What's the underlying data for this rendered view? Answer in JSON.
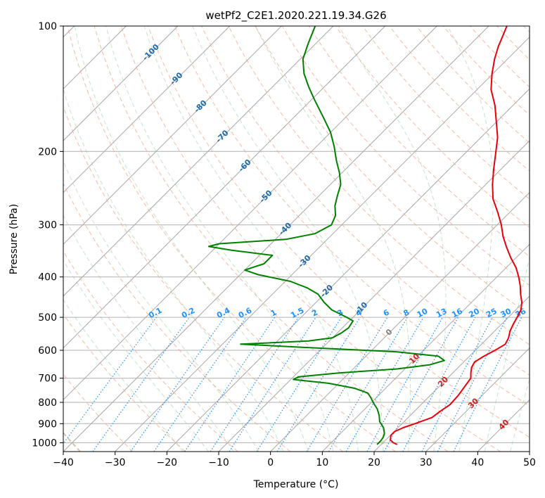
{
  "chart_data": {
    "type": "line",
    "title": "wetPf2_C2E1.2020.221.19.34.G26",
    "xlabel": "Temperature (°C)",
    "ylabel": "Pressure (hPa)",
    "xlim": [
      -40,
      50
    ],
    "ylim": [
      1050,
      100
    ],
    "y_scale": "log",
    "skew": true,
    "grid": true,
    "x_ticks": [
      -40,
      -30,
      -20,
      -10,
      0,
      10,
      20,
      30,
      40,
      50
    ],
    "x_tick_labels": [
      "−40",
      "−30",
      "−20",
      "−10",
      "0",
      "10",
      "20",
      "30",
      "40",
      "50"
    ],
    "y_ticks": [
      100,
      200,
      300,
      400,
      500,
      600,
      700,
      800,
      900,
      1000
    ],
    "y_tick_labels": [
      "100",
      "200",
      "300",
      "400",
      "500",
      "600",
      "700",
      "800",
      "900",
      "1000"
    ],
    "dry_adiabat_labels": [
      "-100",
      "-90",
      "-80",
      "-70",
      "-60",
      "-50",
      "-40",
      "-30",
      "-20",
      "-10",
      "0",
      "10",
      "20",
      "30",
      "40"
    ],
    "mixing_ratio_labels": [
      "0.1",
      "0.2",
      "0.4",
      "0.6",
      "1",
      "1.5",
      "2",
      "3",
      "4",
      "6",
      "8",
      "10",
      "13",
      "16",
      "20",
      "25",
      "30",
      "36"
    ],
    "mixing_ratio_values": [
      0.1,
      0.2,
      0.4,
      0.6,
      1,
      1.5,
      2,
      3,
      4,
      6,
      8,
      10,
      13,
      16,
      20,
      25,
      30,
      36
    ],
    "series": [
      {
        "color": "#e8000b",
        "points": [
          [
            1010,
            23.1
          ],
          [
            1000,
            22.0
          ],
          [
            985,
            20.9
          ],
          [
            960,
            20.1
          ],
          [
            940,
            20.1
          ],
          [
            920,
            21.0
          ],
          [
            900,
            22.5
          ],
          [
            870,
            24.6
          ],
          [
            840,
            25.0
          ],
          [
            810,
            25.6
          ],
          [
            770,
            25.4
          ],
          [
            730,
            24.9
          ],
          [
            700,
            24.5
          ],
          [
            680,
            23.5
          ],
          [
            660,
            22.6
          ],
          [
            640,
            22.1
          ],
          [
            620,
            22.8
          ],
          [
            600,
            23.8
          ],
          [
            580,
            24.6
          ],
          [
            560,
            24.0
          ],
          [
            540,
            23.0
          ],
          [
            520,
            22.3
          ],
          [
            500,
            21.7
          ],
          [
            480,
            21.0
          ],
          [
            460,
            19.7
          ],
          [
            440,
            17.9
          ],
          [
            420,
            16.2
          ],
          [
            400,
            14.2
          ],
          [
            380,
            11.9
          ],
          [
            360,
            9.0
          ],
          [
            340,
            6.2
          ],
          [
            320,
            3.4
          ],
          [
            300,
            0.8
          ],
          [
            280,
            -2.3
          ],
          [
            260,
            -5.8
          ],
          [
            240,
            -8.7
          ],
          [
            220,
            -11.5
          ],
          [
            200,
            -14.4
          ],
          [
            185,
            -16.8
          ],
          [
            170,
            -20.0
          ],
          [
            155,
            -23.5
          ],
          [
            142,
            -27.3
          ],
          [
            130,
            -30.2
          ],
          [
            120,
            -32.5
          ],
          [
            112,
            -34.2
          ],
          [
            105,
            -35.5
          ],
          [
            100,
            -36.5
          ]
        ]
      },
      {
        "color": "#008000",
        "points": [
          [
            1010,
            19.2
          ],
          [
            990,
            19.2
          ],
          [
            970,
            19.0
          ],
          [
            950,
            18.5
          ],
          [
            920,
            17.2
          ],
          [
            890,
            15.3
          ],
          [
            860,
            14.0
          ],
          [
            830,
            12.4
          ],
          [
            800,
            10.3
          ],
          [
            780,
            9.0
          ],
          [
            760,
            7.5
          ],
          [
            740,
            4.0
          ],
          [
            720,
            -2.0
          ],
          [
            705,
            -9.5
          ],
          [
            695,
            -9.0
          ],
          [
            680,
            -2.0
          ],
          [
            665,
            8.5
          ],
          [
            650,
            14.0
          ],
          [
            635,
            16.0
          ],
          [
            620,
            14.0
          ],
          [
            605,
            5.0
          ],
          [
            590,
            -14.0
          ],
          [
            580,
            -26.5
          ],
          [
            570,
            -14.0
          ],
          [
            560,
            -10.0
          ],
          [
            545,
            -9.2
          ],
          [
            530,
            -8.8
          ],
          [
            510,
            -9.3
          ],
          [
            500,
            -11.2
          ],
          [
            480,
            -15.5
          ],
          [
            460,
            -18.5
          ],
          [
            440,
            -21.2
          ],
          [
            425,
            -24.5
          ],
          [
            410,
            -29.0
          ],
          [
            395,
            -36.5
          ],
          [
            385,
            -40.0
          ],
          [
            372,
            -37.5
          ],
          [
            355,
            -37.5
          ],
          [
            345,
            -46.5
          ],
          [
            338,
            -51.5
          ],
          [
            333,
            -50.0
          ],
          [
            325,
            -38.0
          ],
          [
            315,
            -33.5
          ],
          [
            300,
            -32.0
          ],
          [
            285,
            -33.0
          ],
          [
            270,
            -35.0
          ],
          [
            255,
            -36.5
          ],
          [
            240,
            -38.0
          ],
          [
            225,
            -40.5
          ],
          [
            210,
            -43.5
          ],
          [
            195,
            -46.5
          ],
          [
            180,
            -50.0
          ],
          [
            165,
            -54.5
          ],
          [
            150,
            -59.5
          ],
          [
            140,
            -63.0
          ],
          [
            130,
            -66.5
          ],
          [
            120,
            -69.5
          ],
          [
            110,
            -71.5
          ],
          [
            100,
            -73.5
          ]
        ]
      }
    ]
  }
}
